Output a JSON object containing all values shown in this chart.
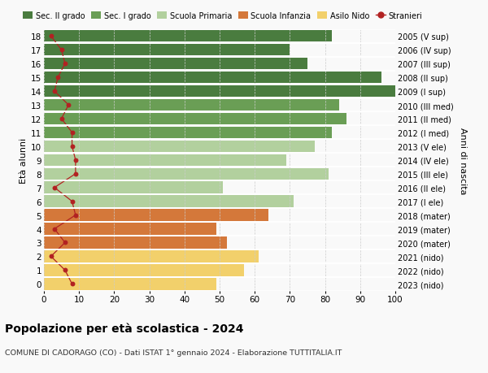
{
  "ages": [
    18,
    17,
    16,
    15,
    14,
    13,
    12,
    11,
    10,
    9,
    8,
    7,
    6,
    5,
    4,
    3,
    2,
    1,
    0
  ],
  "years": [
    "2005 (V sup)",
    "2006 (IV sup)",
    "2007 (III sup)",
    "2008 (II sup)",
    "2009 (I sup)",
    "2010 (III med)",
    "2011 (II med)",
    "2012 (I med)",
    "2013 (V ele)",
    "2014 (IV ele)",
    "2015 (III ele)",
    "2016 (II ele)",
    "2017 (I ele)",
    "2018 (mater)",
    "2019 (mater)",
    "2020 (mater)",
    "2021 (nido)",
    "2022 (nido)",
    "2023 (nido)"
  ],
  "bar_values": [
    82,
    70,
    75,
    96,
    100,
    84,
    86,
    82,
    77,
    69,
    81,
    51,
    71,
    64,
    49,
    52,
    61,
    57,
    49
  ],
  "bar_colors": [
    "#4a7c3f",
    "#4a7c3f",
    "#4a7c3f",
    "#4a7c3f",
    "#4a7c3f",
    "#6a9e55",
    "#6a9e55",
    "#6a9e55",
    "#b2d09e",
    "#b2d09e",
    "#b2d09e",
    "#b2d09e",
    "#b2d09e",
    "#d4783a",
    "#d4783a",
    "#d4783a",
    "#f2d06b",
    "#f2d06b",
    "#f2d06b"
  ],
  "stranieri": [
    2,
    5,
    6,
    4,
    3,
    7,
    5,
    8,
    8,
    9,
    9,
    3,
    8,
    9,
    3,
    6,
    2,
    6,
    8
  ],
  "legend_labels": [
    "Sec. II grado",
    "Sec. I grado",
    "Scuola Primaria",
    "Scuola Infanzia",
    "Asilo Nido",
    "Stranieri"
  ],
  "legend_colors": [
    "#4a7c3f",
    "#6a9e55",
    "#b2d09e",
    "#d4783a",
    "#f2d06b",
    "#b22222"
  ],
  "ylabel_left": "Età alunni",
  "ylabel_right": "Anni di nascita",
  "title": "Popolazione per età scolastica - 2024",
  "subtitle": "COMUNE DI CADORAGO (CO) - Dati ISTAT 1° gennaio 2024 - Elaborazione TUTTITALIA.IT",
  "xlim": [
    0,
    100
  ],
  "background_color": "#f9f9f9",
  "grid_color": "#cccccc"
}
